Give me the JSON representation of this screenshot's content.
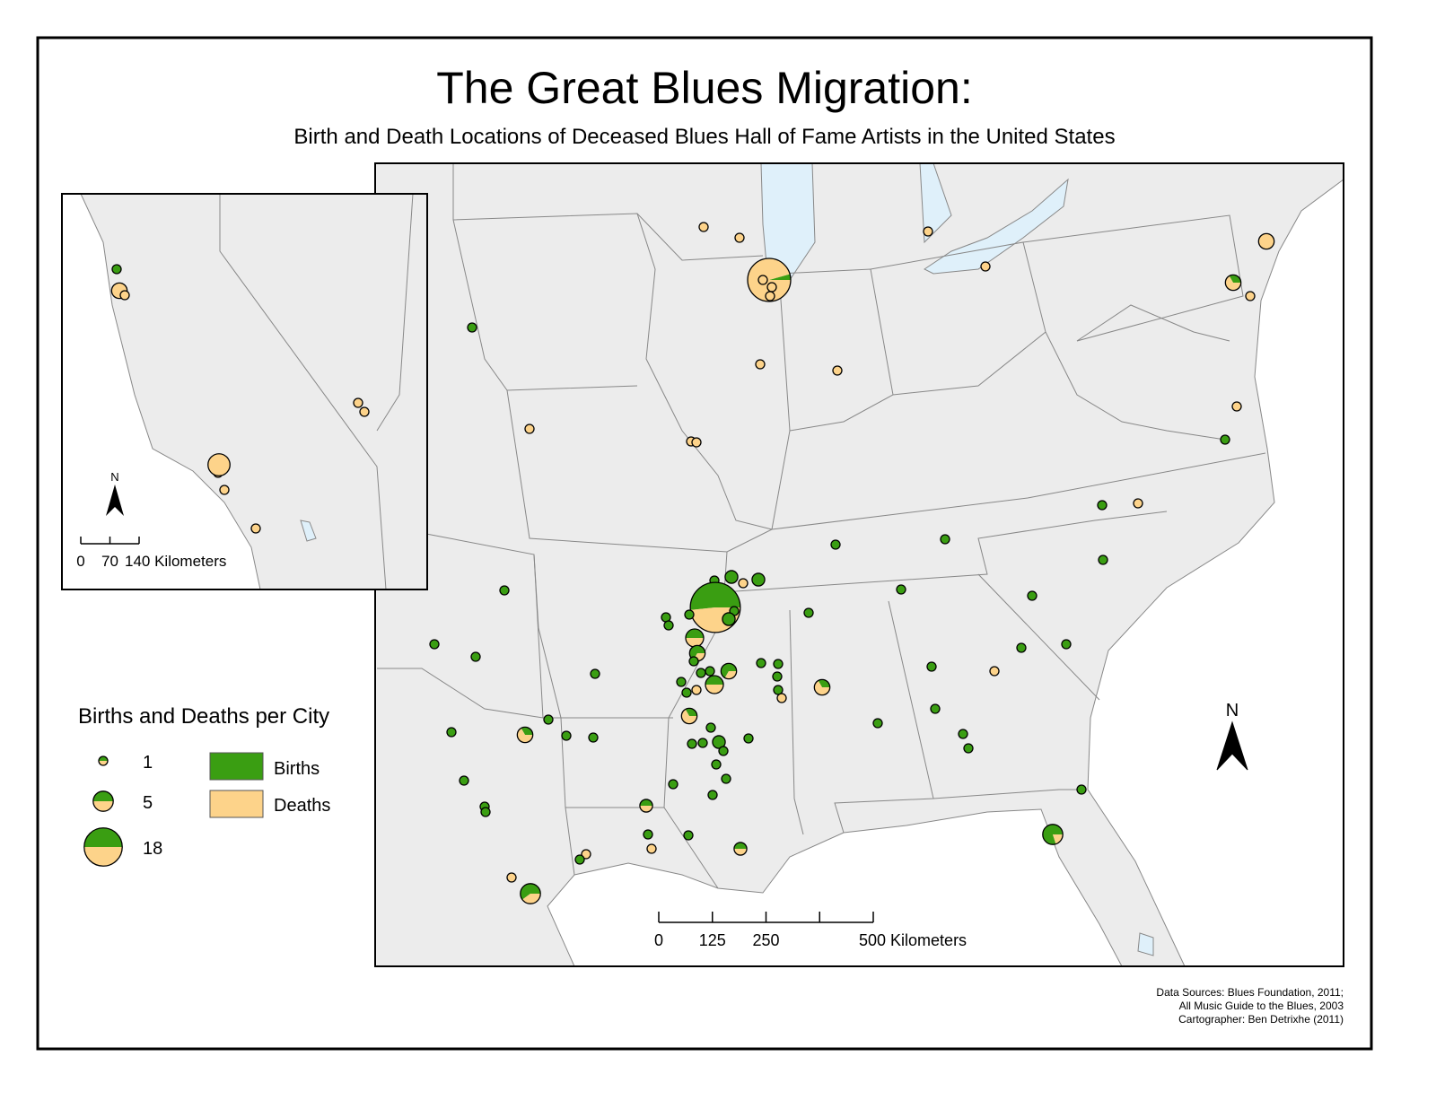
{
  "title": "The Great Blues Migration:",
  "subtitle": "Birth and Death Locations of Deceased Blues Hall of Fame Artists in the United States",
  "legend": {
    "title": "Births and Deaths per City",
    "sizes": [
      1,
      5,
      18
    ],
    "births_label": "Births",
    "deaths_label": "Deaths",
    "births_color": "#3a9e12",
    "deaths_color": "#fdd38a"
  },
  "north_label": "N",
  "scale_bar": {
    "ticks": [
      0,
      125,
      250,
      {
        "value": 500,
        "label": "500 Kilometers"
      }
    ]
  },
  "inset_scale_bar": {
    "ticks": [
      0,
      70,
      {
        "value": 140,
        "label": "140 Kilometers"
      }
    ]
  },
  "sources": [
    "Data Sources:  Blues Foundation, 2011;",
    "All Music Guide to the Blues, 2003",
    "Cartographer:  Ben Detrixhe (2011)"
  ],
  "cities": [
    {
      "births": 0,
      "deaths": 1
    },
    {
      "births": 0,
      "deaths": 1
    },
    {
      "births": 0,
      "deaths": 1
    },
    {
      "births": 0,
      "deaths": 1
    },
    {
      "births": 0,
      "deaths": 3
    },
    {
      "births": 1,
      "deaths": 22
    },
    {
      "births": 0,
      "deaths": 1
    },
    {
      "births": 0,
      "deaths": 1
    },
    {
      "births": 0,
      "deaths": 1
    },
    {
      "births": 1,
      "deaths": 2
    },
    {
      "births": 0,
      "deaths": 1
    },
    {
      "births": 1,
      "deaths": 0
    },
    {
      "births": 0,
      "deaths": 1
    },
    {
      "births": 0,
      "deaths": 1
    },
    {
      "births": 0,
      "deaths": 1
    },
    {
      "births": 0,
      "deaths": 1
    },
    {
      "births": 0,
      "deaths": 1
    },
    {
      "births": 0,
      "deaths": 1
    },
    {
      "births": 1,
      "deaths": 0
    },
    {
      "births": 1,
      "deaths": 0
    },
    {
      "births": 0,
      "deaths": 1
    },
    {
      "births": 1,
      "deaths": 0
    },
    {
      "births": 1,
      "deaths": 0
    },
    {
      "births": 1,
      "deaths": 0
    },
    {
      "births": 1,
      "deaths": 0
    },
    {
      "births": 2,
      "deaths": 0
    },
    {
      "births": 2,
      "deaths": 0
    },
    {
      "births": 1,
      "deaths": 0
    },
    {
      "births": 1,
      "deaths": 0
    },
    {
      "births": 16,
      "deaths": 15
    },
    {
      "births": 1,
      "deaths": 0
    },
    {
      "births": 0,
      "deaths": 1
    },
    {
      "births": 1,
      "deaths": 0
    },
    {
      "births": 1,
      "deaths": 0
    },
    {
      "births": 1,
      "deaths": 0
    },
    {
      "births": 1,
      "deaths": 0
    },
    {
      "births": 1,
      "deaths": 0
    },
    {
      "births": 2,
      "deaths": 0
    },
    {
      "births": 1,
      "deaths": 0
    },
    {
      "births": 1,
      "deaths": 0
    },
    {
      "births": 2,
      "deaths": 2
    },
    {
      "births": 2,
      "deaths": 1
    },
    {
      "births": 1,
      "deaths": 0
    },
    {
      "births": 1,
      "deaths": 0
    },
    {
      "births": 1,
      "deaths": 0
    },
    {
      "births": 1,
      "deaths": 0
    },
    {
      "births": 2,
      "deaths": 1
    },
    {
      "births": 1,
      "deaths": 0
    },
    {
      "births": 1,
      "deaths": 0
    },
    {
      "births": 1,
      "deaths": 0
    },
    {
      "births": 1,
      "deaths": 0
    },
    {
      "births": 1,
      "deaths": 0
    },
    {
      "births": 1,
      "deaths": 0
    },
    {
      "births": 0,
      "deaths": 1
    },
    {
      "births": 2,
      "deaths": 2
    },
    {
      "births": 1,
      "deaths": 0
    },
    {
      "births": 1,
      "deaths": 2
    },
    {
      "births": 1,
      "deaths": 0
    },
    {
      "births": 0,
      "deaths": 1
    },
    {
      "births": 1,
      "deaths": 0
    },
    {
      "births": 0,
      "deaths": 1
    },
    {
      "births": 1,
      "deaths": 0
    },
    {
      "births": 1,
      "deaths": 2
    },
    {
      "births": 1,
      "deaths": 0
    },
    {
      "births": 1,
      "deaths": 0
    },
    {
      "births": 1,
      "deaths": 0
    },
    {
      "births": 1,
      "deaths": 2
    },
    {
      "births": 1,
      "deaths": 0
    },
    {
      "births": 1,
      "deaths": 0
    },
    {
      "births": 1,
      "deaths": 0
    },
    {
      "births": 1,
      "deaths": 0
    },
    {
      "births": 2,
      "deaths": 0
    },
    {
      "births": 1,
      "deaths": 0
    },
    {
      "births": 1,
      "deaths": 0
    },
    {
      "births": 1,
      "deaths": 0
    },
    {
      "births": 1,
      "deaths": 0
    },
    {
      "births": 1,
      "deaths": 0
    },
    {
      "births": 1,
      "deaths": 0
    },
    {
      "births": 1,
      "deaths": 0
    },
    {
      "births": 1,
      "deaths": 0
    },
    {
      "births": 1,
      "deaths": 0
    },
    {
      "births": 1,
      "deaths": 0
    },
    {
      "births": 1,
      "deaths": 0
    },
    {
      "births": 1,
      "deaths": 0
    },
    {
      "births": 1,
      "deaths": 0
    },
    {
      "births": 1,
      "deaths": 1
    },
    {
      "births": 1,
      "deaths": 0
    },
    {
      "births": 1,
      "deaths": 0
    },
    {
      "births": 1,
      "deaths": 1
    },
    {
      "births": 4,
      "deaths": 1
    },
    {
      "births": 0,
      "deaths": 1
    },
    {
      "births": 0,
      "deaths": 1
    },
    {
      "births": 1,
      "deaths": 0
    },
    {
      "births": 0,
      "deaths": 1
    },
    {
      "births": 3,
      "deaths": 2
    },
    {
      "births": 1,
      "deaths": 0
    },
    {
      "births": 0,
      "deaths": 3
    },
    {
      "births": 0,
      "deaths": 1
    },
    {
      "births": 0,
      "deaths": 1
    },
    {
      "births": 0,
      "deaths": 1
    },
    {
      "births": 0,
      "deaths": 1
    },
    {
      "births": 0,
      "deaths": 6
    },
    {
      "births": 0,
      "deaths": 1
    },
    {
      "births": 0,
      "deaths": 1
    },
    {
      "births": 0,
      "deaths": 1
    }
  ]
}
